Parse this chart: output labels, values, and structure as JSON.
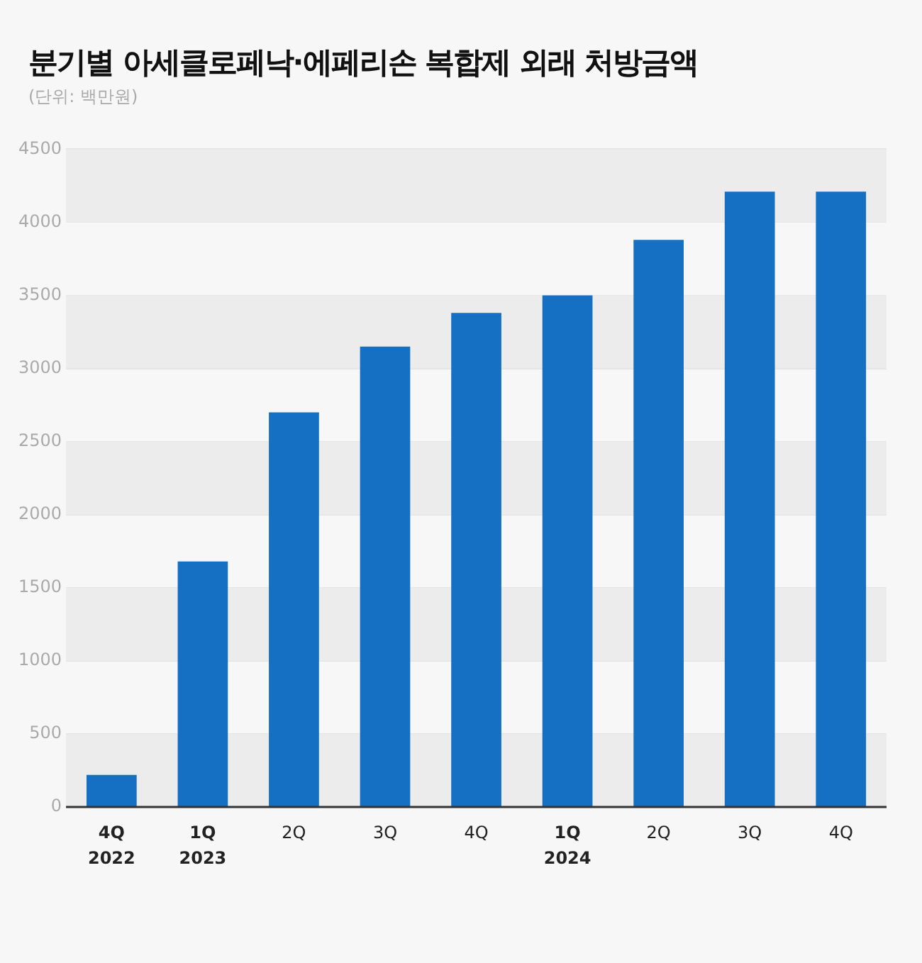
{
  "chart_data": {
    "type": "bar",
    "title": "분기별 아세클로페낙·에페리손 복합제 외래 처방금액",
    "subtitle": "(단위: 백만원)",
    "categories": [
      "4Q\n2022",
      "1Q\n2023",
      "2Q",
      "3Q",
      "4Q",
      "1Q\n2024",
      "2Q",
      "3Q",
      "4Q"
    ],
    "values": [
      220,
      1680,
      2700,
      3150,
      3380,
      3500,
      3880,
      4210,
      4210
    ],
    "color": "#1570c4",
    "ylim": [
      0,
      4500
    ],
    "yticks": [
      0,
      500,
      1000,
      1500,
      2000,
      2500,
      3000,
      3500,
      4000,
      4500
    ],
    "grid": "y",
    "legend": false
  }
}
